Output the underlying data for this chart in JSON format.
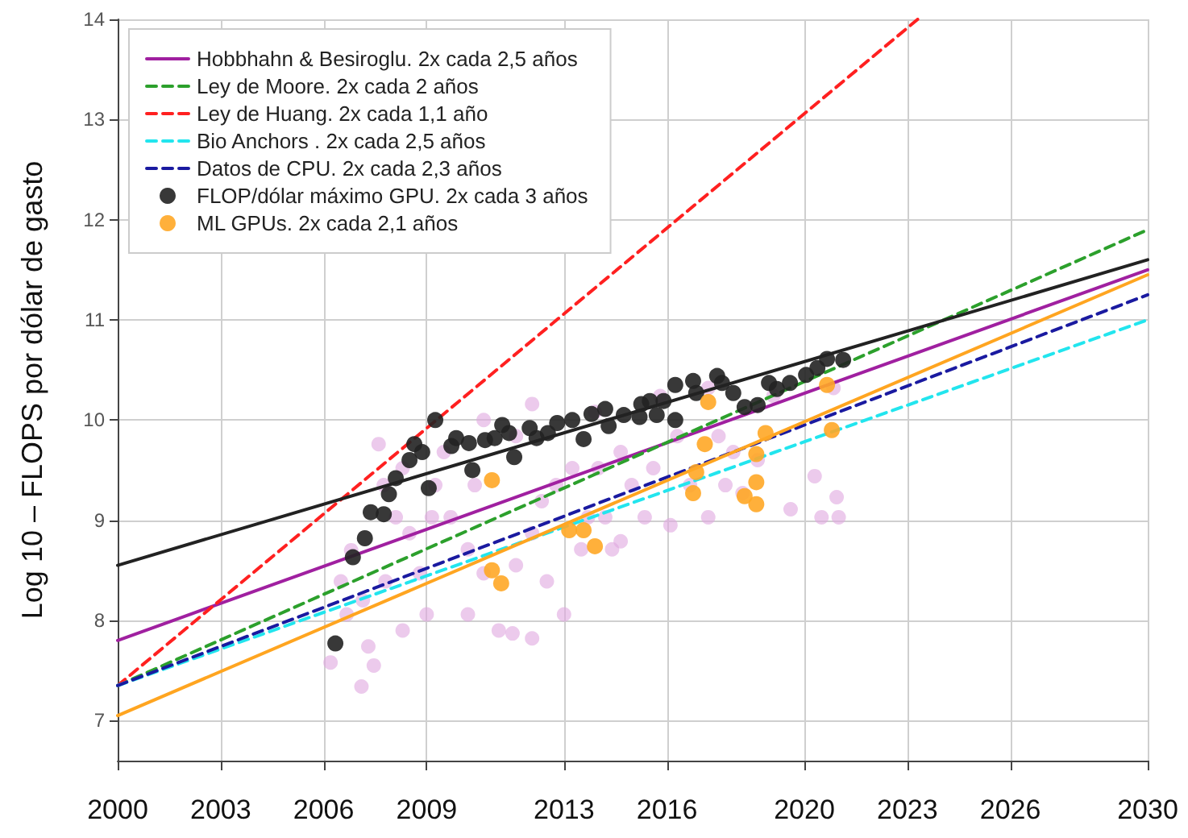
{
  "chart_data": {
    "type": "scatter",
    "ylabel": "Log 10 – FLOPS por dólar de gasto",
    "xlim": [
      2000,
      2030
    ],
    "ylim": [
      6.6,
      14
    ],
    "xticks": [
      2000,
      2003,
      2006,
      2009,
      2013,
      2016,
      2020,
      2023,
      2026,
      2030
    ],
    "yticks": [
      7,
      8,
      9,
      10,
      11,
      12,
      13,
      14
    ],
    "grid": true,
    "legend": "top left",
    "series": [
      {
        "color": "#dfa7df",
        "x": [
          2007.3,
          2007.46,
          2007.1,
          2007.14,
          2007.8,
          2006.8,
          2008.1,
          2008.5,
          2008.8,
          2009.0,
          2008.3,
          2009.25,
          2009.7,
          2010.2,
          2010.4,
          2010.66,
          2011.1,
          2011.5,
          2011.6,
          2012.07,
          2012.35,
          2012.77,
          2013.0,
          2013.24,
          2013.7,
          2014.0,
          2014.4,
          2014.65,
          2014.97,
          2015.35,
          2015.6,
          2016.1,
          2016.3,
          2016.67,
          2017.2,
          2017.5,
          2017.7,
          2017.93,
          2018.2,
          2018.64,
          2019.6,
          2020.3,
          2020.5,
          2020.94,
          2021.0,
          2020.85,
          2019.1,
          2017.2,
          2015.8,
          2013.9,
          2012.07,
          2010.66,
          2009.5,
          2007.6,
          2006.5,
          2006.67,
          2007.75,
          2006.2,
          2012.5,
          2013.5,
          2014.2,
          2010.2,
          2012.07,
          2014.65,
          2009.15,
          2008.3,
          2011.6
        ],
        "values": [
          7.74,
          7.55,
          7.34,
          8.2,
          8.39,
          8.7,
          9.03,
          8.87,
          8.47,
          8.06,
          7.9,
          9.35,
          9.03,
          8.71,
          9.35,
          8.47,
          7.9,
          7.87,
          8.55,
          8.87,
          9.19,
          9.35,
          8.06,
          9.52,
          9.03,
          9.52,
          8.71,
          9.68,
          9.35,
          9.03,
          9.52,
          8.95,
          9.84,
          9.35,
          9.03,
          9.84,
          9.35,
          9.68,
          9.27,
          9.6,
          9.11,
          9.44,
          9.03,
          9.23,
          9.03,
          10.32,
          10.24,
          10.32,
          10.24,
          10.08,
          10.16,
          10.0,
          9.68,
          9.76,
          8.39,
          8.06,
          9.35,
          7.58,
          8.39,
          8.71,
          9.03,
          8.06,
          7.82,
          8.79,
          9.03,
          9.52,
          9.84
        ]
      },
      {
        "type": "line",
        "name": "Hobbhahn & Besiroglu. 2x cada 2,5 años",
        "color": "#a020a0",
        "line_style": "solid",
        "x": [
          2000,
          2030
        ],
        "values": [
          7.8,
          11.5
        ]
      },
      {
        "type": "line",
        "name": "Ley de Moore. 2x cada 2 años",
        "color": "#2ca02c",
        "line_style": "dashed",
        "x": [
          2000,
          2030
        ],
        "values": [
          7.35,
          11.9
        ]
      },
      {
        "type": "line",
        "name": "Ley de Huang. 2x cada 1,1 año",
        "color": "#ff2020",
        "line_style": "dashed",
        "x": [
          2000,
          2023.3
        ],
        "values": [
          7.35,
          14
        ]
      },
      {
        "type": "line",
        "name": "Bio Anchors . 2x cada 2,5 años",
        "color": "#22e5ee",
        "line_style": "dashed",
        "x": [
          2000,
          2030
        ],
        "values": [
          7.35,
          11.0
        ]
      },
      {
        "type": "line",
        "name": "Datos de CPU. 2x cada 2,3 años",
        "color": "#1a1aa0",
        "line_style": "dashed",
        "x": [
          2000,
          2030
        ],
        "values": [
          7.35,
          11.25
        ]
      },
      {
        "type": "line",
        "color": "#222222",
        "line_style": "solid",
        "x": [
          2000,
          2030
        ],
        "values": [
          8.55,
          11.6
        ]
      },
      {
        "type": "line",
        "color": "#ffa520",
        "line_style": "solid",
        "x": [
          2000,
          2030
        ],
        "values": [
          7.05,
          11.45
        ]
      },
      {
        "name": "FLOP/dólar máximo GPU. 2x cada 3 años",
        "color": "#222222",
        "x": [
          2006.34,
          2006.85,
          2007.2,
          2007.37,
          2007.75,
          2007.9,
          2008.1,
          2008.5,
          2008.64,
          2008.87,
          2009.06,
          2009.25,
          2009.72,
          2009.86,
          2010.23,
          2010.33,
          2010.7,
          2010.98,
          2011.2,
          2011.4,
          2011.55,
          2012.0,
          2012.2,
          2012.53,
          2012.8,
          2013.24,
          2013.57,
          2013.8,
          2014.2,
          2014.3,
          2014.74,
          2015.25,
          2015.2,
          2015.5,
          2015.7,
          2015.9,
          2016.24,
          2016.24,
          2016.76,
          2016.85,
          2017.46,
          2017.6,
          2017.93,
          2018.26,
          2018.64,
          2018.97,
          2019.2,
          2019.58,
          2020.05,
          2020.38,
          2020.66,
          2021.13
        ],
        "values": [
          7.77,
          8.63,
          8.82,
          9.08,
          9.06,
          9.26,
          9.42,
          9.6,
          9.76,
          9.68,
          9.32,
          10.0,
          9.74,
          9.82,
          9.77,
          9.5,
          9.8,
          9.82,
          9.95,
          9.87,
          9.63,
          9.92,
          9.82,
          9.87,
          9.97,
          10.0,
          9.81,
          10.06,
          10.11,
          9.94,
          10.05,
          10.16,
          10.03,
          10.19,
          10.05,
          10.19,
          10.35,
          10.0,
          10.39,
          10.27,
          10.44,
          10.37,
          10.27,
          10.13,
          10.15,
          10.37,
          10.31,
          10.37,
          10.45,
          10.52,
          10.61,
          10.6
        ]
      },
      {
        "name": "ML GPUs. 2x cada 2,1 años",
        "color": "#ffa726",
        "x": [
          2010.9,
          2010.9,
          2011.17,
          2013.15,
          2013.57,
          2013.9,
          2017.2,
          2017.1,
          2016.76,
          2016.85,
          2018.6,
          2018.87,
          2018.6,
          2018.26,
          2018.6,
          2020.66,
          2020.8
        ],
        "values": [
          9.4,
          8.5,
          8.37,
          8.9,
          8.9,
          8.74,
          10.18,
          9.76,
          9.27,
          9.48,
          9.66,
          9.87,
          9.38,
          9.24,
          9.16,
          10.35,
          9.9
        ]
      }
    ]
  }
}
